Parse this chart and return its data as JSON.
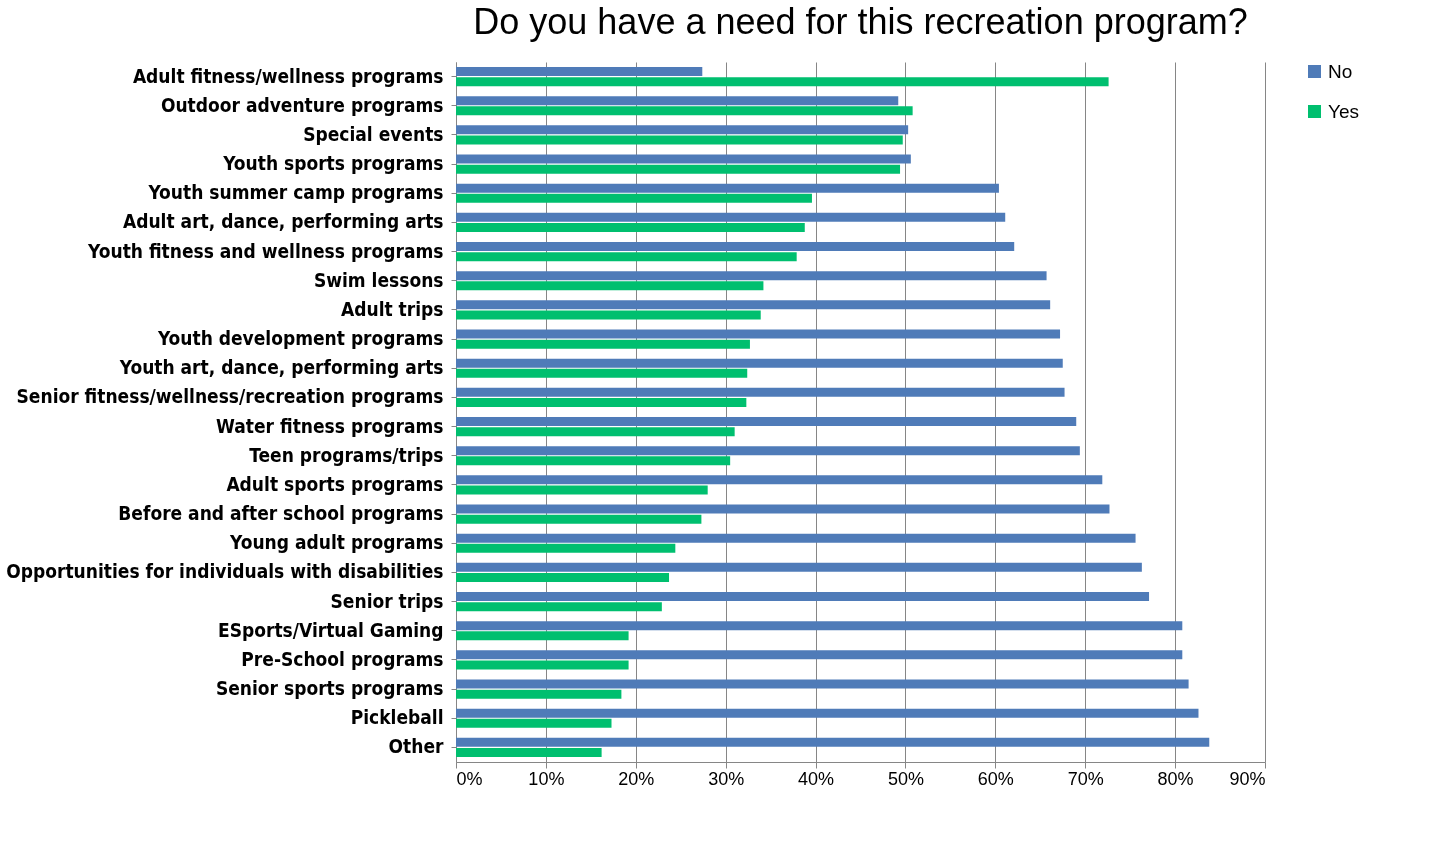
{
  "chart_data": {
    "type": "bar",
    "orientation": "horizontal",
    "title": "Do you have a need for this recreation program?",
    "categories": [
      "Adult fitness/wellness programs",
      "Outdoor adventure programs",
      "Special events",
      "Youth sports programs",
      "Youth summer camp programs",
      "Adult art, dance, performing arts",
      "Youth fitness and wellness programs",
      "Swim lessons",
      "Adult trips",
      "Youth development programs",
      "Youth art, dance, performing arts",
      "Senior fitness/wellness/recreation programs",
      "Water fitness programs",
      "Teen programs/trips",
      "Adult sports programs",
      "Before and after school programs",
      "Young adult programs",
      "Opportunities for individuals with disabilities",
      "Senior trips",
      "ESports/Virtual Gaming",
      "Pre-School programs",
      "Senior sports programs",
      "Pickleball",
      "Other"
    ],
    "series": [
      {
        "name": "No",
        "color": "#4f7bb8",
        "values": [
          27.4,
          49.2,
          50.3,
          50.6,
          60.4,
          61.1,
          62.1,
          65.7,
          66.1,
          67.2,
          67.5,
          67.7,
          69.0,
          69.4,
          71.9,
          72.7,
          75.6,
          76.3,
          77.1,
          80.8,
          80.8,
          81.5,
          82.6,
          83.8
        ]
      },
      {
        "name": "Yes",
        "color": "#00bf6f",
        "values": [
          72.6,
          50.8,
          49.7,
          49.4,
          39.6,
          38.8,
          37.9,
          34.2,
          33.9,
          32.7,
          32.4,
          32.3,
          31.0,
          30.5,
          28.0,
          27.3,
          24.4,
          23.7,
          22.9,
          19.2,
          19.2,
          18.4,
          17.3,
          16.2
        ]
      }
    ],
    "xlim": [
      0,
      90
    ],
    "xticks": [
      {
        "value": 0,
        "label": "0%"
      },
      {
        "value": 10,
        "label": "10%"
      },
      {
        "value": 20,
        "label": "20%"
      },
      {
        "value": 30,
        "label": "30%"
      },
      {
        "value": 40,
        "label": "40%"
      },
      {
        "value": 50,
        "label": "50%"
      },
      {
        "value": 60,
        "label": "60%"
      },
      {
        "value": 70,
        "label": "70%"
      },
      {
        "value": 80,
        "label": "80%"
      },
      {
        "value": 90,
        "label": "90%"
      }
    ],
    "grid": "x",
    "legend": "right"
  }
}
